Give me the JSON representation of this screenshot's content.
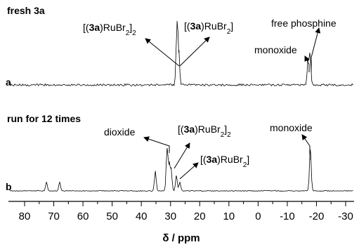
{
  "chart_data": {
    "type": "line",
    "xlabel": "δ / ppm",
    "x_direction": "reversed",
    "xlim": [
      85,
      -33
    ],
    "ticks": [
      80,
      70,
      60,
      50,
      40,
      30,
      20,
      10,
      0,
      -10,
      -20,
      -30
    ],
    "tick_labels": [
      "80",
      "70",
      "60",
      "50",
      "40",
      "30",
      "20",
      "10",
      "0",
      "-10",
      "-20",
      "-30"
    ],
    "panels": [
      {
        "label": "a",
        "title": "fresh 3a",
        "noise_amplitude": 0.13,
        "peaks": [
          {
            "ppm": 27.8,
            "height": 1.0
          },
          {
            "ppm": 27.2,
            "height": 0.55
          },
          {
            "ppm": -17.1,
            "height": 0.4
          },
          {
            "ppm": -17.8,
            "height": 0.5
          }
        ],
        "annotations": [
          {
            "id": "dimer",
            "pre": "[(",
            "bold": "3a",
            "mid": ")RuBr",
            "sub": "2",
            "post": "]",
            "sub2": "2"
          },
          {
            "id": "monomer",
            "pre": "[(",
            "bold": "3a",
            "mid": ")RuBr",
            "sub": "2",
            "post": "]",
            "sub2": ""
          },
          {
            "id": "monoxide",
            "text": "monoxide"
          },
          {
            "id": "free",
            "text": "free phosphine"
          }
        ]
      },
      {
        "label": "b",
        "title": "run for 12 times",
        "noise_amplitude": 0.06,
        "peaks": [
          {
            "ppm": 35.2,
            "height": 0.45
          },
          {
            "ppm": 31.2,
            "height": 0.95
          },
          {
            "ppm": 30.5,
            "height": 0.6
          },
          {
            "ppm": 29.8,
            "height": 0.5
          },
          {
            "ppm": 28.0,
            "height": 0.35
          },
          {
            "ppm": 26.8,
            "height": 0.2
          },
          {
            "ppm": 72.5,
            "height": 0.2
          },
          {
            "ppm": 68.0,
            "height": 0.2
          },
          {
            "ppm": -17.9,
            "height": 0.95
          }
        ],
        "annotations": [
          {
            "id": "dioxide",
            "text": "dioxide"
          },
          {
            "id": "dimer",
            "pre": "[(",
            "bold": "3a",
            "mid": ")RuBr",
            "sub": "2",
            "post": "]",
            "sub2": "2"
          },
          {
            "id": "monomer",
            "pre": "[(",
            "bold": "3a",
            "mid": ")RuBr",
            "sub": "2",
            "post": "]",
            "sub2": ""
          },
          {
            "id": "monoxide",
            "text": "monoxide"
          }
        ]
      }
    ]
  }
}
